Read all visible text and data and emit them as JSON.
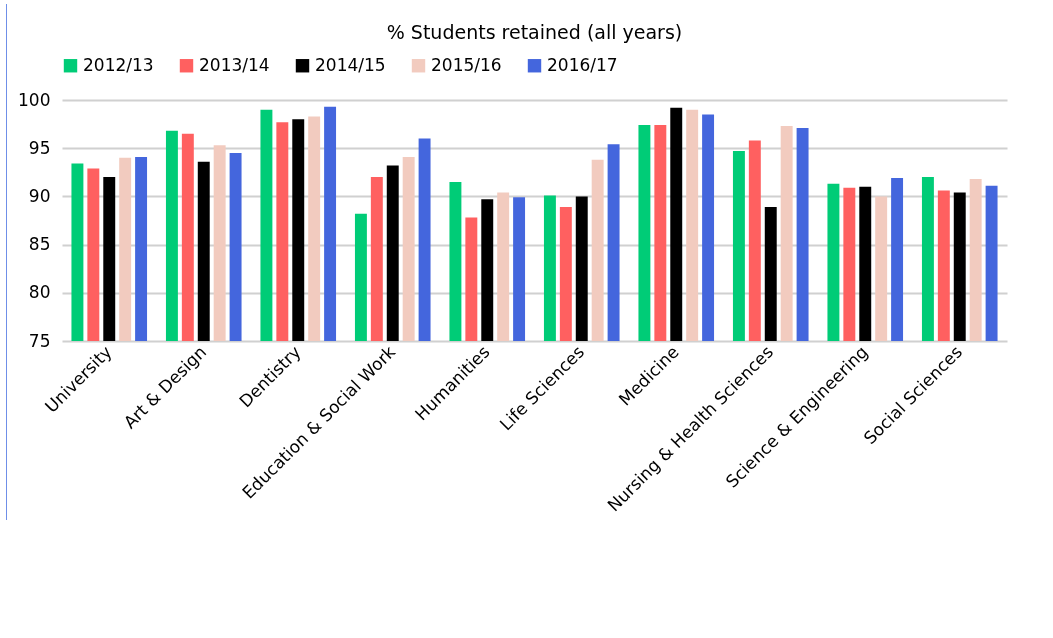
{
  "chart_data": {
    "type": "bar",
    "title": "% Students retained (all years)",
    "categories": [
      "University",
      "Art & Design",
      "Dentistry",
      "Education & Social Work",
      "Humanities",
      "Life Sciences",
      "Medicine",
      "Nursing & Health Sciences",
      "Science & Engineering",
      "Social Sciences"
    ],
    "series": [
      {
        "name": "2012/13",
        "color": "#00cc77",
        "values": [
          93.4,
          96.8,
          99.0,
          88.2,
          91.5,
          90.1,
          97.4,
          94.7,
          91.3,
          92.0
        ]
      },
      {
        "name": "2013/14",
        "color": "#ff6060",
        "values": [
          92.9,
          96.5,
          97.7,
          92.0,
          87.8,
          88.9,
          97.4,
          95.8,
          90.9,
          90.6
        ]
      },
      {
        "name": "2014/15",
        "color": "#000000",
        "values": [
          92.0,
          93.6,
          98.0,
          93.2,
          89.7,
          90.0,
          99.2,
          88.9,
          91.0,
          90.4
        ]
      },
      {
        "name": "2015/16",
        "color": "#f2cbbf",
        "values": [
          94.0,
          95.3,
          98.3,
          94.1,
          90.4,
          93.8,
          99.0,
          97.3,
          90.0,
          91.8
        ]
      },
      {
        "name": "2016/17",
        "color": "#4466dd",
        "values": [
          94.1,
          94.5,
          99.3,
          96.0,
          89.9,
          95.4,
          98.5,
          97.1,
          91.9,
          91.1
        ]
      }
    ],
    "ylim": [
      75,
      100
    ],
    "yticks": [
      75,
      80,
      85,
      90,
      95,
      100
    ],
    "grid": "y",
    "legend": "top"
  }
}
